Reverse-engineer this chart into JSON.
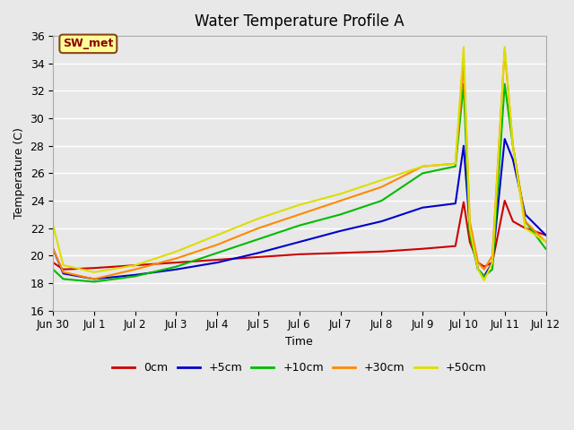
{
  "title": "Water Temperature Profile A",
  "xlabel": "Time",
  "ylabel": "Temperature (C)",
  "ylim": [
    16,
    36
  ],
  "yticks": [
    16,
    18,
    20,
    22,
    24,
    26,
    28,
    30,
    32,
    34,
    36
  ],
  "annotation_text": "SW_met",
  "annotation_color": "#8B0000",
  "annotation_bg": "#FFFF99",
  "annotation_border": "#8B4513",
  "x_labels": [
    "Jun 30",
    "Jul 1",
    "Jul 2",
    "Jul 3",
    "Jul 4",
    "Jul 5",
    "Jul 6",
    "Jul 7",
    "Jul 8",
    "Jul 9",
    "Jul 10",
    "Jul 11",
    "Jul 12"
  ],
  "series": {
    "0cm": {
      "color": "#CC0000",
      "data_x": [
        0,
        0.25,
        1.0,
        2.0,
        3.0,
        4.0,
        5.0,
        6.0,
        7.0,
        8.0,
        9.0,
        9.8,
        10.0,
        10.15,
        10.35,
        10.5,
        10.7,
        11.0,
        11.2,
        11.5,
        12.0
      ],
      "data_y": [
        19.5,
        19.0,
        19.1,
        19.3,
        19.5,
        19.7,
        19.9,
        20.1,
        20.2,
        20.3,
        20.5,
        20.7,
        23.9,
        21.0,
        19.5,
        19.2,
        19.5,
        24.0,
        22.5,
        22.0,
        21.5
      ]
    },
    "+5cm": {
      "color": "#0000CC",
      "data_x": [
        0,
        0.25,
        1.0,
        2.0,
        3.0,
        4.0,
        5.0,
        6.0,
        7.0,
        8.0,
        9.0,
        9.8,
        10.0,
        10.15,
        10.35,
        10.5,
        10.7,
        11.0,
        11.2,
        11.5,
        12.0
      ],
      "data_y": [
        20.5,
        18.7,
        18.3,
        18.6,
        19.0,
        19.5,
        20.2,
        21.0,
        21.8,
        22.5,
        23.5,
        23.8,
        28.0,
        22.0,
        19.0,
        18.5,
        19.5,
        28.5,
        27.0,
        23.0,
        21.5
      ]
    },
    "+10cm": {
      "color": "#00BB00",
      "data_x": [
        0,
        0.25,
        1.0,
        2.0,
        3.0,
        4.0,
        5.0,
        6.0,
        7.0,
        8.0,
        9.0,
        9.8,
        10.0,
        10.15,
        10.35,
        10.5,
        10.7,
        11.0,
        11.2,
        11.5,
        12.0
      ],
      "data_y": [
        19.0,
        18.3,
        18.1,
        18.5,
        19.2,
        20.2,
        21.2,
        22.2,
        23.0,
        24.0,
        26.0,
        26.5,
        32.5,
        21.5,
        19.0,
        18.5,
        19.0,
        32.5,
        28.0,
        22.5,
        20.5
      ]
    },
    "+30cm": {
      "color": "#FF8800",
      "data_x": [
        0,
        0.25,
        1.0,
        2.0,
        3.0,
        4.0,
        5.0,
        6.0,
        7.0,
        8.0,
        9.0,
        9.8,
        10.0,
        10.15,
        10.35,
        10.5,
        10.7,
        11.0,
        11.2,
        11.5,
        12.0
      ],
      "data_y": [
        20.5,
        18.8,
        18.3,
        19.0,
        19.8,
        20.8,
        22.0,
        23.0,
        24.0,
        25.0,
        26.5,
        26.7,
        34.0,
        22.5,
        19.5,
        19.0,
        20.0,
        35.0,
        28.0,
        22.5,
        21.0
      ]
    },
    "+50cm": {
      "color": "#DDDD00",
      "data_x": [
        0,
        0.25,
        1.0,
        2.0,
        3.0,
        4.0,
        5.0,
        6.0,
        7.0,
        8.0,
        9.0,
        9.8,
        10.0,
        10.15,
        10.35,
        10.5,
        10.7,
        11.0,
        11.2,
        11.5,
        12.0
      ],
      "data_y": [
        22.2,
        19.3,
        18.8,
        19.3,
        20.3,
        21.5,
        22.7,
        23.7,
        24.5,
        25.5,
        26.5,
        26.7,
        35.2,
        22.0,
        19.0,
        18.2,
        19.5,
        35.2,
        28.0,
        22.0,
        21.0
      ]
    }
  },
  "bg_color": "#E8E8E8",
  "plot_bg_color": "#E8E8E8",
  "grid_color": "#FFFFFF",
  "figsize": [
    6.4,
    4.8
  ],
  "dpi": 100
}
